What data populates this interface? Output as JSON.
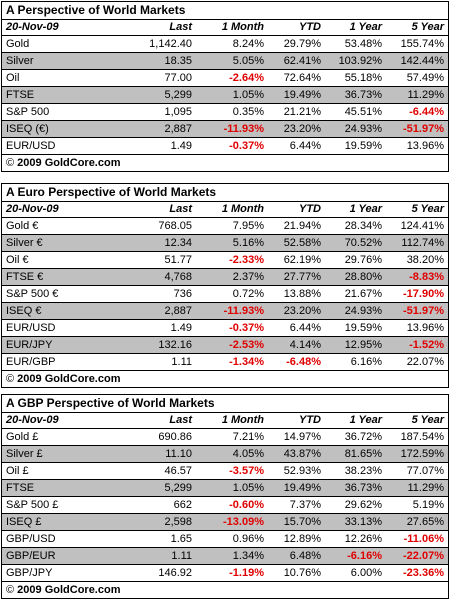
{
  "panels": [
    {
      "title": "A Perspective of World Markets",
      "date": "20-Nov-09",
      "headers": [
        "Last",
        "1 Month",
        "YTD",
        "1 Year",
        "5 Year"
      ],
      "rows": [
        {
          "name": "Gold",
          "last": "1,142.40",
          "m1": "8.24%",
          "ytd": "29.79%",
          "y1": "53.48%",
          "y5": "155.74%"
        },
        {
          "name": "Silver",
          "last": "18.35",
          "m1": "5.05%",
          "ytd": "62.41%",
          "y1": "103.92%",
          "y5": "142.44%"
        },
        {
          "name": "Oil",
          "last": "77.00",
          "m1": "-2.64%",
          "ytd": "72.64%",
          "y1": "55.18%",
          "y5": "57.49%"
        },
        {
          "name": "FTSE",
          "last": "5,299",
          "m1": "1.05%",
          "ytd": "19.49%",
          "y1": "36.73%",
          "y5": "11.29%"
        },
        {
          "name": "S&P 500",
          "last": "1,095",
          "m1": "0.35%",
          "ytd": "21.21%",
          "y1": "45.51%",
          "y5": "-6.44%"
        },
        {
          "name": "ISEQ (€)",
          "last": "2,887",
          "m1": "-11.93%",
          "ytd": "23.20%",
          "y1": "24.93%",
          "y5": "-51.97%"
        },
        {
          "name": "EUR/USD",
          "last": "1.49",
          "m1": "-0.37%",
          "ytd": "6.44%",
          "y1": "19.59%",
          "y5": "13.96%"
        }
      ],
      "footer": "2009 GoldCore.com"
    },
    {
      "title": "A Euro Perspective of World Markets",
      "date": "20-Nov-09",
      "headers": [
        "Last",
        "1 Month",
        "YTD",
        "1 Year",
        "5 Year"
      ],
      "rows": [
        {
          "name": "Gold €",
          "last": "768.05",
          "m1": "7.95%",
          "ytd": "21.94%",
          "y1": "28.34%",
          "y5": "124.41%"
        },
        {
          "name": "Silver €",
          "last": "12.34",
          "m1": "5.16%",
          "ytd": "52.58%",
          "y1": "70.52%",
          "y5": "112.74%"
        },
        {
          "name": "Oil €",
          "last": "51.77",
          "m1": "-2.33%",
          "ytd": "62.19%",
          "y1": "29.76%",
          "y5": "38.20%"
        },
        {
          "name": "FTSE €",
          "last": "4,768",
          "m1": "2.37%",
          "ytd": "27.77%",
          "y1": "28.80%",
          "y5": "-8.83%"
        },
        {
          "name": "S&P 500 €",
          "last": "736",
          "m1": "0.72%",
          "ytd": "13.88%",
          "y1": "21.67%",
          "y5": "-17.90%"
        },
        {
          "name": "ISEQ €",
          "last": "2,887",
          "m1": "-11.93%",
          "ytd": "23.20%",
          "y1": "24.93%",
          "y5": "-51.97%"
        },
        {
          "name": "EUR/USD",
          "last": "1.49",
          "m1": "-0.37%",
          "ytd": "6.44%",
          "y1": "19.59%",
          "y5": "13.96%"
        },
        {
          "name": "EUR/JPY",
          "last": "132.16",
          "m1": "-2.53%",
          "ytd": "4.14%",
          "y1": "12.95%",
          "y5": "-1.52%"
        },
        {
          "name": "EUR/GBP",
          "last": "1.11",
          "m1": "-1.34%",
          "ytd": "-6.48%",
          "y1": "6.16%",
          "y5": "22.07%"
        }
      ],
      "footer": "2009 GoldCore.com"
    },
    {
      "title": "A GBP Perspective of World Markets",
      "date": "20-Nov-09",
      "headers": [
        "Last",
        "1 Month",
        "YTD",
        "1 Year",
        "5 Year"
      ],
      "rows": [
        {
          "name": "Gold £",
          "last": "690.86",
          "m1": "7.21%",
          "ytd": "14.97%",
          "y1": "36.72%",
          "y5": "187.54%"
        },
        {
          "name": "Silver £",
          "last": "11.10",
          "m1": "4.05%",
          "ytd": "43.87%",
          "y1": "81.65%",
          "y5": "172.59%"
        },
        {
          "name": "Oil £",
          "last": "46.57",
          "m1": "-3.57%",
          "ytd": "52.93%",
          "y1": "38.23%",
          "y5": "77.07%"
        },
        {
          "name": "FTSE",
          "last": "5,299",
          "m1": "1.05%",
          "ytd": "19.49%",
          "y1": "36.73%",
          "y5": "11.29%"
        },
        {
          "name": "S&P 500 £",
          "last": "662",
          "m1": "-0.60%",
          "ytd": "7.37%",
          "y1": "29.62%",
          "y5": "5.19%"
        },
        {
          "name": "ISEQ £",
          "last": "2,598",
          "m1": "-13.09%",
          "ytd": "15.70%",
          "y1": "33.13%",
          "y5": "27.65%"
        },
        {
          "name": "GBP/USD",
          "last": "1.65",
          "m1": "0.96%",
          "ytd": "12.89%",
          "y1": "12.26%",
          "y5": "-11.06%"
        },
        {
          "name": "GBP/EUR",
          "last": "1.11",
          "m1": "1.34%",
          "ytd": "6.48%",
          "y1": "-6.16%",
          "y5": "-22.07%"
        },
        {
          "name": "GBP/JPY",
          "last": "146.92",
          "m1": "-1.19%",
          "ytd": "10.76%",
          "y1": "6.00%",
          "y5": "-23.36%"
        }
      ],
      "footer": "2009 GoldCore.com"
    }
  ],
  "copyright_symbol": "©",
  "colors": {
    "negative": "#e00000",
    "shaded_row": "#c0c0c0"
  }
}
